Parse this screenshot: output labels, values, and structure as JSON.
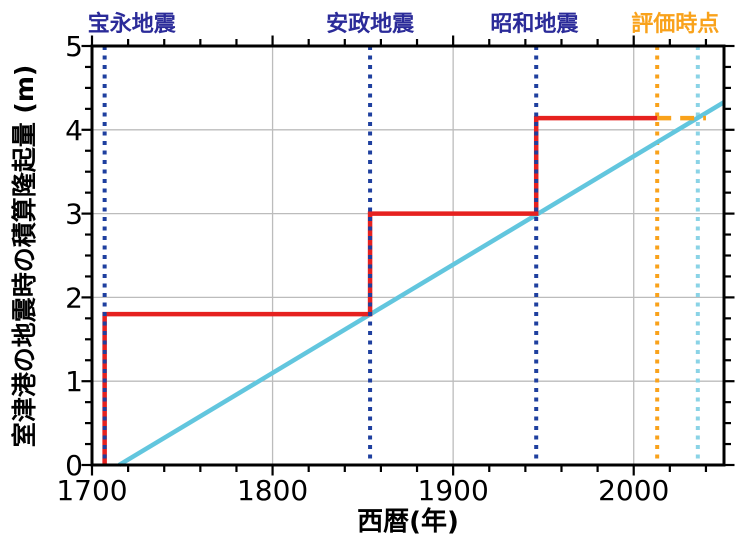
{
  "figure": {
    "background": "#ffffff",
    "frame_color": "#000000"
  },
  "chart_data": {
    "type": "line",
    "title": "",
    "xlabel": "西暦(年)",
    "ylabel": "室津港の地震時の積算隆起量 (m)",
    "xlim": [
      1700,
      2050
    ],
    "ylim": [
      0,
      5
    ],
    "x_ticks_major": [
      1700,
      1800,
      1900,
      2000
    ],
    "x_tick_minor_interval": 20,
    "y_ticks_major": [
      0,
      1,
      2,
      3,
      4,
      5
    ],
    "y_tick_minor_interval": 0.25,
    "grid": {
      "x_lines": [
        1800,
        1900,
        2000
      ],
      "y_lines": [
        1,
        2,
        3,
        4
      ],
      "color": "#bcbcbc"
    },
    "legend": "none",
    "series": [
      {
        "id": "steady-uplift-trend-line",
        "style": "solid",
        "color": "#62c6de",
        "width": 4.5,
        "points": [
          [
            1715,
            0
          ],
          [
            2050,
            4.33
          ]
        ]
      },
      {
        "id": "projected-uplift-extension",
        "style": "dashed",
        "color": "#f9a21b",
        "width": 4.5,
        "dash": [
          14,
          9
        ],
        "points": [
          [
            2013,
            4.14
          ],
          [
            2040,
            4.14
          ]
        ]
      },
      {
        "id": "coseismic-cumulative-uplift-steps",
        "style": "solid",
        "color": "#e6211f",
        "width": 4.5,
        "points": [
          [
            1707,
            0
          ],
          [
            1707,
            1.8
          ],
          [
            1854,
            1.8
          ],
          [
            1854,
            3.0
          ],
          [
            1946,
            3.0
          ],
          [
            1946,
            4.14
          ],
          [
            2013,
            4.14
          ]
        ]
      }
    ],
    "uplift_steps": [
      {
        "event": "宝永地震",
        "year": 1707,
        "cumulative_uplift_m": 1.8
      },
      {
        "event": "安政地震",
        "year": 1854,
        "cumulative_uplift_m": 3.0
      },
      {
        "event": "昭和地震",
        "year": 1946,
        "cumulative_uplift_m": 4.14
      }
    ],
    "event_lines": [
      {
        "id": "hoei-earthquake",
        "label": "宝永地震",
        "year": 1707,
        "line_color": "#1e3f9f",
        "label_color": "#2b2b99",
        "label_center_year": 1722,
        "layer": "above"
      },
      {
        "id": "ansei-earthquake",
        "label": "安政地震",
        "year": 1854,
        "line_color": "#1e3f9f",
        "label_color": "#2b2b99",
        "label_center_year": 1854,
        "layer": "above"
      },
      {
        "id": "showa-earthquake",
        "label": "昭和地震",
        "year": 1946,
        "line_color": "#1e3f9f",
        "label_color": "#2b2b99",
        "label_center_year": 1945,
        "layer": "above"
      },
      {
        "id": "evaluation-time",
        "label": "評価時点",
        "year": 2013,
        "line_color": "#f9a21b",
        "label_color": "#f9a21b",
        "label_center_year": 2023,
        "layer": "below"
      },
      {
        "id": "projected-next-event",
        "label": "",
        "year": 2035.5,
        "line_color": "#8ad3e6",
        "label_color": "#8ad3e6",
        "label_center_year": 2035.5,
        "layer": "below"
      }
    ]
  }
}
